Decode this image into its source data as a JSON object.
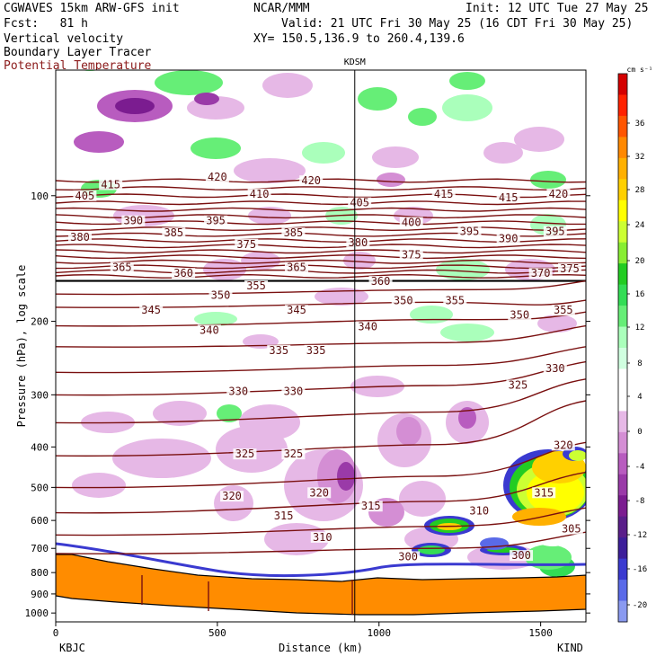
{
  "header": {
    "model": "CGWAVES 15km ARW-GFS init",
    "org": "NCAR/MMM",
    "init": "Init: 12 UTC Tue 27 May 25",
    "fcst": "Fcst:   81 h",
    "valid": "Valid: 21 UTC Fri 30 May 25 (16 CDT Fri 30 May 25)",
    "field1": "Vertical velocity",
    "xy": "XY= 150.5,136.9 to 260.4,139.6",
    "field2": "Boundary Layer Tracer",
    "field3": "Potential Temperature"
  },
  "colors": {
    "theta": "#7a1010",
    "terrain": "#ff8c00",
    "header_red": "#8b1a1a"
  },
  "chart_data": {
    "type": "cross-section",
    "station_marker": "KDSM",
    "xlabel": "Distance (km)",
    "ylabel": "Pressure (hPa), log scale",
    "xticks": [
      "0",
      "500",
      "1000",
      "1500"
    ],
    "xtick_values": [
      0,
      500,
      1000,
      1500
    ],
    "xlim": [
      0,
      1640
    ],
    "station_x_km": 925,
    "left_endpoint": "KBJC",
    "right_endpoint": "KIND",
    "yticks": [
      "100",
      "200",
      "300",
      "400",
      "500",
      "600",
      "700",
      "800",
      "900",
      "1000"
    ],
    "ytick_values": [
      100,
      200,
      300,
      400,
      500,
      600,
      700,
      800,
      900,
      1000
    ],
    "ylim": [
      1050,
      50
    ],
    "y_scale": "log",
    "colorbar": {
      "unit": "cm s⁻¹",
      "labels": [
        "36",
        "32",
        "28",
        "24",
        "20",
        "16",
        "12",
        "8",
        "4",
        "0",
        "-4",
        "-8",
        "-12",
        "-16",
        "-20"
      ],
      "colors": [
        "#d40000",
        "#ff2200",
        "#ff5500",
        "#ff8800",
        "#ffb000",
        "#ffd000",
        "#ffff00",
        "#ccff33",
        "#88ee33",
        "#22cc22",
        "#33dd55",
        "#66ee77",
        "#aaffbb",
        "#d0ffe0",
        "#ffffff",
        "#ffffff",
        "#e6b8e6",
        "#d48ed4",
        "#b85cbf",
        "#9a3aa8",
        "#7b1c90",
        "#5a1e8a",
        "#3c1e9a",
        "#3a3ad0",
        "#5a6ae8",
        "#8a9af0"
      ]
    },
    "theta_labels": [
      {
        "value": "415",
        "x_km": 170,
        "p": 95
      },
      {
        "value": "420",
        "x_km": 500,
        "p": 91
      },
      {
        "value": "420",
        "x_km": 790,
        "p": 93
      },
      {
        "value": "415",
        "x_km": 1200,
        "p": 100
      },
      {
        "value": "415",
        "x_km": 1400,
        "p": 102
      },
      {
        "value": "420",
        "x_km": 1555,
        "p": 100
      },
      {
        "value": "405",
        "x_km": 90,
        "p": 101
      },
      {
        "value": "410",
        "x_km": 630,
        "p": 100
      },
      {
        "value": "405",
        "x_km": 940,
        "p": 105
      },
      {
        "value": "390",
        "x_km": 240,
        "p": 116
      },
      {
        "value": "395",
        "x_km": 495,
        "p": 116
      },
      {
        "value": "400",
        "x_km": 1100,
        "p": 117
      },
      {
        "value": "395",
        "x_km": 1280,
        "p": 123
      },
      {
        "value": "395",
        "x_km": 1545,
        "p": 123
      },
      {
        "value": "380",
        "x_km": 75,
        "p": 127
      },
      {
        "value": "385",
        "x_km": 365,
        "p": 124
      },
      {
        "value": "385",
        "x_km": 735,
        "p": 124
      },
      {
        "value": "375",
        "x_km": 590,
        "p": 132
      },
      {
        "value": "380",
        "x_km": 935,
        "p": 131
      },
      {
        "value": "390",
        "x_km": 1400,
        "p": 128
      },
      {
        "value": "375",
        "x_km": 1100,
        "p": 140
      },
      {
        "value": "365",
        "x_km": 205,
        "p": 150
      },
      {
        "value": "360",
        "x_km": 395,
        "p": 155
      },
      {
        "value": "365",
        "x_km": 745,
        "p": 150
      },
      {
        "value": "360",
        "x_km": 1005,
        "p": 162
      },
      {
        "value": "370",
        "x_km": 1500,
        "p": 155
      },
      {
        "value": "375",
        "x_km": 1590,
        "p": 151
      },
      {
        "value": "355",
        "x_km": 1235,
        "p": 180
      },
      {
        "value": "355",
        "x_km": 1570,
        "p": 190
      },
      {
        "value": "350",
        "x_km": 510,
        "p": 175
      },
      {
        "value": "355",
        "x_km": 620,
        "p": 166
      },
      {
        "value": "350",
        "x_km": 1075,
        "p": 180
      },
      {
        "value": "345",
        "x_km": 295,
        "p": 190
      },
      {
        "value": "345",
        "x_km": 745,
        "p": 190
      },
      {
        "value": "350",
        "x_km": 1435,
        "p": 195
      },
      {
        "value": "340",
        "x_km": 475,
        "p": 212
      },
      {
        "value": "340",
        "x_km": 965,
        "p": 208
      },
      {
        "value": "335",
        "x_km": 690,
        "p": 237
      },
      {
        "value": "335",
        "x_km": 805,
        "p": 237
      },
      {
        "value": "330",
        "x_km": 1545,
        "p": 262
      },
      {
        "value": "325",
        "x_km": 1430,
        "p": 287
      },
      {
        "value": "330",
        "x_km": 565,
        "p": 297
      },
      {
        "value": "330",
        "x_km": 735,
        "p": 297
      },
      {
        "value": "325",
        "x_km": 585,
        "p": 420
      },
      {
        "value": "325",
        "x_km": 735,
        "p": 420
      },
      {
        "value": "320",
        "x_km": 1570,
        "p": 400
      },
      {
        "value": "320",
        "x_km": 545,
        "p": 530
      },
      {
        "value": "320",
        "x_km": 815,
        "p": 520
      },
      {
        "value": "315",
        "x_km": 1510,
        "p": 520
      },
      {
        "value": "315",
        "x_km": 705,
        "p": 590
      },
      {
        "value": "315",
        "x_km": 975,
        "p": 560
      },
      {
        "value": "310",
        "x_km": 1310,
        "p": 575
      },
      {
        "value": "310",
        "x_km": 825,
        "p": 665
      },
      {
        "value": "305",
        "x_km": 1595,
        "p": 635
      },
      {
        "value": "300",
        "x_km": 1090,
        "p": 740
      },
      {
        "value": "300",
        "x_km": 1440,
        "p": 735
      }
    ]
  }
}
